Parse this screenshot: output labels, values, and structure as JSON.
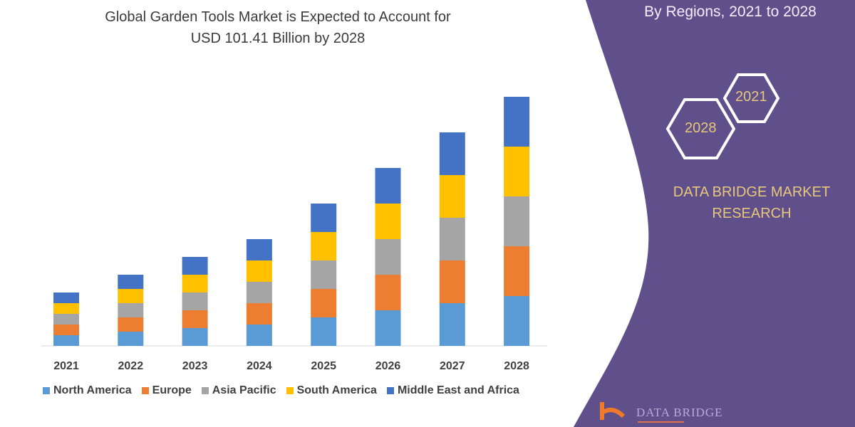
{
  "header": {
    "title_line1": "Global Garden Tools Market is Expected to Account for",
    "title_line2": "USD 101.41 Billion by 2028",
    "right_title": "By Regions, 2021 to 2028"
  },
  "badges": {
    "start_year": "2021",
    "end_year": "2028"
  },
  "brand": {
    "line1": "DATA BRIDGE MARKET",
    "line2": "RESEARCH",
    "logo_text": "DATA BRIDGE"
  },
  "colors": {
    "panel": "#5f4f8b",
    "accent_text": "#e8c77a"
  },
  "chart_data": {
    "type": "bar",
    "stacked": true,
    "categories": [
      "2021",
      "2022",
      "2023",
      "2024",
      "2025",
      "2026",
      "2027",
      "2028"
    ],
    "series": [
      {
        "name": "North America",
        "color": "#5b9bd5",
        "values": [
          15,
          20,
          25,
          30,
          40,
          50,
          60,
          70
        ]
      },
      {
        "name": "Europe",
        "color": "#ed7d31",
        "values": [
          15,
          20,
          25,
          30,
          40,
          50,
          60,
          70
        ]
      },
      {
        "name": "Asia Pacific",
        "color": "#a5a5a5",
        "values": [
          15,
          20,
          25,
          30,
          40,
          50,
          60,
          70
        ]
      },
      {
        "name": "South America",
        "color": "#ffc000",
        "values": [
          15,
          20,
          25,
          30,
          40,
          50,
          60,
          70
        ]
      },
      {
        "name": "Middle East and Africa",
        "color": "#4472c4",
        "values": [
          15,
          20,
          25,
          30,
          40,
          50,
          60,
          70
        ]
      }
    ],
    "ylim": [
      0,
      351
    ],
    "grid": false,
    "legend": "bottom"
  }
}
